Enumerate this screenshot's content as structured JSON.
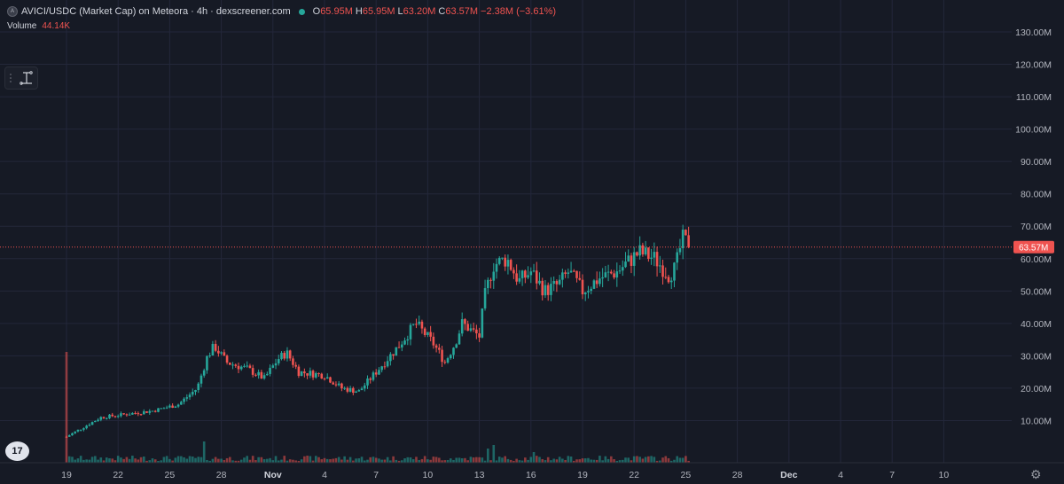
{
  "header": {
    "title": "AVICI/USDC (Market Cap) on Meteora · 4h · dexscreener.com",
    "open_label": "O",
    "open_value": "65.95M",
    "high_label": "H",
    "high_value": "65.95M",
    "low_label": "L",
    "low_value": "63.20M",
    "close_label": "C",
    "close_value": "63.57M",
    "change": "−2.38M (−3.61%)"
  },
  "volume": {
    "label": "Volume",
    "value": "44.14K"
  },
  "logo": {
    "text": "17"
  },
  "colors": {
    "up": "#26a69a",
    "down": "#ef5350",
    "background": "#161a25",
    "grid": "#23273a",
    "text": "#b2b5be"
  },
  "icons": {
    "symbol": "symbol-icon",
    "tool": "measure-tool-icon",
    "settings": "gear-icon"
  },
  "chart_data": {
    "type": "candlestick",
    "interval": "4h",
    "x_ticks": [
      "19",
      "22",
      "25",
      "28",
      "Nov",
      "4",
      "7",
      "10",
      "13",
      "16",
      "19",
      "22",
      "25",
      "28",
      "Dec",
      "4",
      "7",
      "10"
    ],
    "y_ticks": [
      "10.00M",
      "20.00M",
      "30.00M",
      "40.00M",
      "50.00M",
      "60.00M",
      "70.00M",
      "80.00M",
      "90.00M",
      "100.00M",
      "110.00M",
      "120.00M",
      "130.00M"
    ],
    "y_range": [
      0,
      132
    ],
    "last_price_label": "63.57M",
    "last_price": 63.57,
    "price_trend": [
      {
        "day": 0,
        "p": 5
      },
      {
        "day": 1,
        "p": 8
      },
      {
        "day": 2,
        "p": 11
      },
      {
        "day": 3.5,
        "p": 12
      },
      {
        "day": 5,
        "p": 13
      },
      {
        "day": 6.5,
        "p": 15
      },
      {
        "day": 7.6,
        "p": 20
      },
      {
        "day": 8.2,
        "p": 30
      },
      {
        "day": 8.6,
        "p": 33
      },
      {
        "day": 9.3,
        "p": 28
      },
      {
        "day": 10.5,
        "p": 26
      },
      {
        "day": 11.5,
        "p": 23
      },
      {
        "day": 12.3,
        "p": 29
      },
      {
        "day": 12.8,
        "p": 31
      },
      {
        "day": 13.5,
        "p": 25
      },
      {
        "day": 15,
        "p": 24
      },
      {
        "day": 16,
        "p": 20
      },
      {
        "day": 17,
        "p": 19
      },
      {
        "day": 18,
        "p": 25
      },
      {
        "day": 19.3,
        "p": 33
      },
      {
        "day": 20.3,
        "p": 40
      },
      {
        "day": 21.3,
        "p": 34
      },
      {
        "day": 22,
        "p": 28
      },
      {
        "day": 22.6,
        "p": 34
      },
      {
        "day": 23,
        "p": 40
      },
      {
        "day": 23.5,
        "p": 38
      },
      {
        "day": 24,
        "p": 36
      },
      {
        "day": 24.3,
        "p": 48
      },
      {
        "day": 24.8,
        "p": 58
      },
      {
        "day": 25.6,
        "p": 60
      },
      {
        "day": 26.3,
        "p": 53
      },
      {
        "day": 27,
        "p": 56
      },
      {
        "day": 27.8,
        "p": 50
      },
      {
        "day": 28.6,
        "p": 52
      },
      {
        "day": 29.2,
        "p": 56
      },
      {
        "day": 30,
        "p": 50
      },
      {
        "day": 31,
        "p": 54
      },
      {
        "day": 32,
        "p": 56
      },
      {
        "day": 33.3,
        "p": 62
      },
      {
        "day": 34.2,
        "p": 60
      },
      {
        "day": 35,
        "p": 55
      },
      {
        "day": 35.4,
        "p": 57
      },
      {
        "day": 35.8,
        "p": 66
      },
      {
        "day": 36.3,
        "p": 63.6
      }
    ],
    "volume_max": 44,
    "volume_notes": "Volume bars along bottom; tall spike near 19 (~37 on price scale), spike near 26-27, 11-12"
  }
}
